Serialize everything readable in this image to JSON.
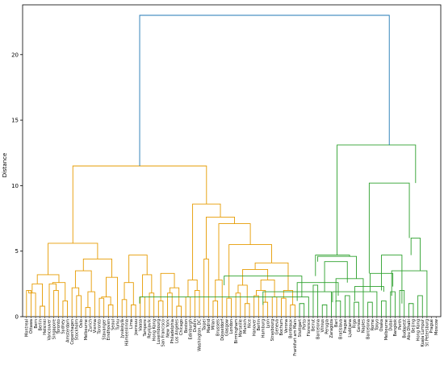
{
  "chart_data": {
    "type": "dendrogram",
    "ylabel": "Distance",
    "ylim": [
      0,
      23.8
    ],
    "y_ticks": [
      0,
      5,
      10,
      15,
      20
    ],
    "colors": {
      "orange": "#e69b00",
      "green": "#2ca02c",
      "root": "#1f77b4"
    },
    "leaves": [
      "Montreal",
      "Ottawa",
      "Bern",
      "Berlin",
      "Helsinki",
      "Vancouver",
      "Singapore",
      "Toronto",
      "Sydney",
      "Amsterdam",
      "Copenhagen",
      "Stockholm",
      "Oslo",
      "Melbourne",
      "Zurich",
      "Vienna",
      "Toronto",
      "Stavanger",
      "Eindhoven",
      "Seoul",
      "Turku",
      "Jyväskylä",
      "Hämeenlinna",
      "Lima",
      "Joensuu",
      "Vaasa",
      "Tampere",
      "Reykjavik",
      "Hong Kong",
      "Luxembourg",
      "San Francisco",
      "New York",
      "Philadelphia",
      "Los Angeles",
      "Chicago",
      "Boston",
      "Edinburgh",
      "Dublin",
      "Washington, DC",
      "Taipei",
      "Madrid",
      "Milan",
      "Brussels",
      "Düsseldorf",
      "Glasgow",
      "London",
      "Birmingham",
      "Marseille",
      "Munich",
      "Nice",
      "Hanover",
      "Berlin",
      "Hamburg",
      "Lyon",
      "Strasbourg",
      "Geneva",
      "Bochum",
      "Verona",
      "Bordeaux",
      "Frankfurt am Main",
      "Stuttgart",
      "Porto",
      "Florence",
      "Beirut",
      "Barcelona",
      "Vilnius",
      "Perugia",
      "Zaragoza",
      "Bari",
      "Bratislava",
      "Prague",
      "Ljubljana",
      "Riga",
      "Genoa",
      "Naples",
      "Barcelona",
      "Rome",
      "Tokyo",
      "Osaka",
      "Melbourne",
      "Dubai",
      "Bangkok",
      "Perth",
      "Budapest",
      "Abu Dhabi",
      "Beijing",
      "Hong Kong",
      "Kuala Lumpur",
      "St Petersburg",
      "Prague",
      "Moscow"
    ],
    "links": [
      {
        "color": "orange",
        "height": 2.0,
        "left": {
          "leaf": 0
        },
        "right": {
          "leaf": 1
        }
      },
      {
        "color": "orange",
        "height": 1.8,
        "left": {
          "node": 0,
          "h": 2.0
        },
        "right": {
          "leaf": 2
        }
      },
      {
        "color": "orange",
        "height": 0.8,
        "left": {
          "leaf": 3
        },
        "right": {
          "leaf": 4
        }
      },
      {
        "color": "orange",
        "height": 2.5,
        "left": {
          "node": 1,
          "h": 1.8
        },
        "right": {
          "node": 2,
          "h": 0.8
        }
      },
      {
        "color": "orange",
        "height": 2.0,
        "left": {
          "leaf": 6
        },
        "right": {
          "leaf": 7
        }
      },
      {
        "color": "orange",
        "height": 2.5,
        "left": {
          "leaf": 5
        },
        "right": {
          "node": 4,
          "h": 2.0
        }
      },
      {
        "color": "orange",
        "height": 1.2,
        "left": {
          "leaf": 8
        },
        "right": {
          "leaf": 9
        }
      },
      {
        "color": "orange",
        "height": 2.6,
        "left": {
          "node": 5,
          "h": 2.5
        },
        "right": {
          "node": 6,
          "h": 1.2
        }
      },
      {
        "color": "orange",
        "height": 3.2,
        "left": {
          "node": 3,
          "h": 2.5
        },
        "right": {
          "node": 7,
          "h": 2.6
        }
      },
      {
        "color": "orange",
        "height": 1.6,
        "left": {
          "leaf": 11
        },
        "right": {
          "leaf": 12
        }
      },
      {
        "color": "orange",
        "height": 2.2,
        "left": {
          "leaf": 10
        },
        "right": {
          "node": 9,
          "h": 1.6
        }
      },
      {
        "color": "orange",
        "height": 0.7,
        "left": {
          "leaf": 13
        },
        "right": {
          "leaf": 14
        }
      },
      {
        "color": "orange",
        "height": 1.9,
        "left": {
          "node": 11,
          "h": 0.7
        },
        "right": {
          "leaf": 15
        }
      },
      {
        "color": "orange",
        "height": 3.5,
        "left": {
          "node": 10,
          "h": 2.2
        },
        "right": {
          "node": 12,
          "h": 1.9
        }
      },
      {
        "color": "orange",
        "height": 1.4,
        "left": {
          "leaf": 16
        },
        "right": {
          "leaf": 17
        }
      },
      {
        "color": "orange",
        "height": 0.9,
        "left": {
          "leaf": 18
        },
        "right": {
          "leaf": 19
        }
      },
      {
        "color": "orange",
        "height": 1.5,
        "left": {
          "node": 14,
          "h": 1.4
        },
        "right": {
          "node": 15,
          "h": 0.9
        }
      },
      {
        "color": "orange",
        "height": 3.0,
        "left": {
          "leaf": 20
        },
        "right": {
          "node": 16,
          "h": 1.5
        }
      },
      {
        "color": "orange",
        "height": 4.4,
        "left": {
          "node": 13,
          "h": 3.5
        },
        "right": {
          "node": 17,
          "h": 3.0
        }
      },
      {
        "color": "orange",
        "height": 5.6,
        "left": {
          "node": 8,
          "h": 3.2
        },
        "right": {
          "node": 18,
          "h": 4.4
        }
      },
      {
        "color": "orange",
        "height": 1.3,
        "left": {
          "leaf": 21
        },
        "right": {
          "leaf": 22
        }
      },
      {
        "color": "orange",
        "height": 0.9,
        "left": {
          "leaf": 23
        },
        "right": {
          "leaf": 24
        }
      },
      {
        "color": "orange",
        "height": 2.6,
        "left": {
          "node": 20,
          "h": 1.3
        },
        "right": {
          "node": 21,
          "h": 0.9
        }
      },
      {
        "color": "orange",
        "height": 1.5,
        "left": {
          "leaf": 25
        },
        "right": {
          "leaf": 26
        }
      },
      {
        "color": "orange",
        "height": 1.8,
        "left": {
          "leaf": 27
        },
        "right": {
          "leaf": 28
        }
      },
      {
        "color": "orange",
        "height": 3.2,
        "left": {
          "node": 23,
          "h": 1.5
        },
        "right": {
          "node": 24,
          "h": 1.8
        }
      },
      {
        "color": "orange",
        "height": 4.7,
        "left": {
          "node": 22,
          "h": 2.6
        },
        "right": {
          "node": 25,
          "h": 3.2
        }
      },
      {
        "color": "orange",
        "height": 1.2,
        "left": {
          "leaf": 29
        },
        "right": {
          "leaf": 30
        }
      },
      {
        "color": "orange",
        "height": 1.8,
        "left": {
          "leaf": 31
        },
        "right": {
          "leaf": 32
        }
      },
      {
        "color": "orange",
        "height": 0.8,
        "left": {
          "leaf": 33
        },
        "right": {
          "leaf": 34
        }
      },
      {
        "color": "orange",
        "height": 2.2,
        "left": {
          "node": 28,
          "h": 1.8
        },
        "right": {
          "node": 29,
          "h": 0.8
        }
      },
      {
        "color": "orange",
        "height": 3.3,
        "left": {
          "node": 27,
          "h": 1.2
        },
        "right": {
          "node": 30,
          "h": 2.2
        }
      },
      {
        "color": "orange",
        "height": 1.5,
        "left": {
          "leaf": 35
        },
        "right": {
          "leaf": 36
        }
      },
      {
        "color": "orange",
        "height": 2.0,
        "left": {
          "leaf": 37
        },
        "right": {
          "leaf": 38
        }
      },
      {
        "color": "orange",
        "height": 2.8,
        "left": {
          "node": 32,
          "h": 1.5
        },
        "right": {
          "node": 33,
          "h": 2.0
        }
      },
      {
        "color": "orange",
        "height": 4.4,
        "left": {
          "leaf": 39
        },
        "right": {
          "leaf": 40
        }
      },
      {
        "color": "orange",
        "height": 1.2,
        "left": {
          "leaf": 41
        },
        "right": {
          "leaf": 42
        }
      },
      {
        "color": "orange",
        "height": 2.8,
        "left": {
          "node": 36,
          "h": 1.2
        },
        "right": {
          "leaf": 43
        }
      },
      {
        "color": "orange",
        "height": 1.4,
        "left": {
          "leaf": 44
        },
        "right": {
          "leaf": 45
        }
      },
      {
        "color": "orange",
        "height": 1.8,
        "left": {
          "leaf": 46
        },
        "right": {
          "leaf": 47
        }
      },
      {
        "color": "orange",
        "height": 1.0,
        "left": {
          "leaf": 48
        },
        "right": {
          "leaf": 49
        }
      },
      {
        "color": "orange",
        "height": 2.4,
        "left": {
          "node": 39,
          "h": 1.8
        },
        "right": {
          "node": 40,
          "h": 1.0
        }
      },
      {
        "color": "orange",
        "height": 1.6,
        "left": {
          "leaf": 50
        },
        "right": {
          "leaf": 51
        }
      },
      {
        "color": "orange",
        "height": 1.1,
        "left": {
          "leaf": 52
        },
        "right": {
          "leaf": 53
        }
      },
      {
        "color": "orange",
        "height": 2.0,
        "left": {
          "node": 42,
          "h": 1.6
        },
        "right": {
          "node": 43,
          "h": 1.1
        }
      },
      {
        "color": "orange",
        "height": 1.5,
        "left": {
          "leaf": 54
        },
        "right": {
          "leaf": 55
        }
      },
      {
        "color": "orange",
        "height": 2.8,
        "left": {
          "node": 44,
          "h": 2.0
        },
        "right": {
          "node": 45,
          "h": 1.5
        }
      },
      {
        "color": "orange",
        "height": 3.6,
        "left": {
          "node": 41,
          "h": 2.4
        },
        "right": {
          "node": 46,
          "h": 2.8
        }
      },
      {
        "color": "orange",
        "height": 1.4,
        "left": {
          "leaf": 56
        },
        "right": {
          "leaf": 57
        }
      },
      {
        "color": "orange",
        "height": 0.9,
        "left": {
          "leaf": 58
        },
        "right": {
          "leaf": 59
        }
      },
      {
        "color": "orange",
        "height": 2.0,
        "left": {
          "node": 48,
          "h": 1.4
        },
        "right": {
          "node": 49,
          "h": 0.9
        }
      },
      {
        "color": "orange",
        "height": 4.1,
        "left": {
          "node": 47,
          "h": 3.6
        },
        "right": {
          "node": 50,
          "h": 2.0
        }
      },
      {
        "color": "orange",
        "height": 5.5,
        "left": {
          "node": 38,
          "h": 1.4
        },
        "right": {
          "node": 51,
          "h": 4.1
        }
      },
      {
        "color": "orange",
        "height": 7.1,
        "left": {
          "node": 37,
          "h": 2.8
        },
        "right": {
          "node": 52,
          "h": 5.5
        }
      },
      {
        "color": "orange",
        "height": 7.6,
        "left": {
          "node": 35,
          "h": 4.4
        },
        "right": {
          "node": 53,
          "h": 7.1
        }
      },
      {
        "color": "orange",
        "height": 8.6,
        "left": {
          "node": 34,
          "h": 2.8
        },
        "right": {
          "node": 54,
          "h": 7.6
        }
      },
      {
        "color": "orange",
        "height": 11.5,
        "left": {
          "node": 19,
          "h": 5.6
        },
        "right": {
          "node": 55,
          "h": 8.6
        }
      },
      {
        "color": "green",
        "height": 1.0,
        "left": {
          "leaf": 60
        },
        "right": {
          "leaf": 61
        }
      },
      {
        "color": "green",
        "height": 1.5,
        "left": {
          "node": 56,
          "h": 1.0
        },
        "right": {
          "leaf": 62
        }
      },
      {
        "color": "green",
        "height": 2.4,
        "left": {
          "leaf": 63
        },
        "right": {
          "leaf": 64
        }
      },
      {
        "color": "green",
        "height": 3.1,
        "left": {
          "node": 57,
          "h": 1.5
        },
        "right": {
          "node": 58,
          "h": 2.4
        }
      },
      {
        "color": "green",
        "height": 0.9,
        "left": {
          "leaf": 65
        },
        "right": {
          "leaf": 66
        }
      },
      {
        "color": "green",
        "height": 1.9,
        "left": {
          "leaf": 67
        },
        "right": {
          "node": 60,
          "h": 0.9
        }
      },
      {
        "color": "green",
        "height": 1.2,
        "left": {
          "leaf": 68
        },
        "right": {
          "leaf": 69
        }
      },
      {
        "color": "green",
        "height": 1.6,
        "left": {
          "leaf": 70
        },
        "right": {
          "leaf": 71
        }
      },
      {
        "color": "green",
        "height": 2.6,
        "left": {
          "node": 62,
          "h": 1.2
        },
        "right": {
          "node": 63,
          "h": 1.6
        }
      },
      {
        "color": "green",
        "height": 4.2,
        "left": {
          "node": 61,
          "h": 1.9
        },
        "right": {
          "node": 64,
          "h": 2.6
        }
      },
      {
        "color": "green",
        "height": 1.1,
        "left": {
          "leaf": 72
        },
        "right": {
          "leaf": 73
        }
      },
      {
        "color": "green",
        "height": 2.9,
        "left": {
          "node": 66,
          "h": 1.1
        },
        "right": {
          "leaf": 74
        }
      },
      {
        "color": "green",
        "height": 4.6,
        "left": {
          "node": 65,
          "h": 4.2
        },
        "right": {
          "node": 67,
          "h": 2.9
        }
      },
      {
        "color": "green",
        "height": 4.7,
        "left": {
          "node": 59,
          "h": 3.1
        },
        "right": {
          "node": 68,
          "h": 4.6
        }
      },
      {
        "color": "green",
        "height": 1.1,
        "left": {
          "leaf": 75
        },
        "right": {
          "leaf": 76
        }
      },
      {
        "color": "green",
        "height": 1.9,
        "left": {
          "node": 70,
          "h": 1.1
        },
        "right": {
          "leaf": 77
        }
      },
      {
        "color": "green",
        "height": 1.2,
        "left": {
          "leaf": 78
        },
        "right": {
          "leaf": 79
        }
      },
      {
        "color": "green",
        "height": 1.9,
        "left": {
          "leaf": 80
        },
        "right": {
          "leaf": 81
        }
      },
      {
        "color": "green",
        "height": 2.3,
        "left": {
          "node": 72,
          "h": 1.2
        },
        "right": {
          "node": 73,
          "h": 1.9
        }
      },
      {
        "color": "green",
        "height": 3.3,
        "left": {
          "node": 71,
          "h": 1.9
        },
        "right": {
          "node": 74,
          "h": 2.3
        }
      },
      {
        "color": "green",
        "height": 2.0,
        "left": {
          "leaf": 82
        },
        "right": {
          "leaf": 83
        }
      },
      {
        "color": "green",
        "height": 1.0,
        "left": {
          "leaf": 84
        },
        "right": {
          "leaf": 85
        }
      },
      {
        "color": "green",
        "height": 4.7,
        "left": {
          "node": 76,
          "h": 2.0
        },
        "right": {
          "node": 77,
          "h": 1.0
        }
      },
      {
        "color": "green",
        "height": 1.6,
        "left": {
          "leaf": 86
        },
        "right": {
          "leaf": 87
        }
      },
      {
        "color": "green",
        "height": 3.5,
        "left": {
          "leaf": 88
        },
        "right": {
          "node": 79,
          "h": 1.6
        }
      },
      {
        "color": "green",
        "height": 6.0,
        "left": {
          "node": 78,
          "h": 4.7
        },
        "right": {
          "node": 80,
          "h": 3.5
        }
      },
      {
        "color": "green",
        "height": 10.2,
        "left": {
          "node": 75,
          "h": 3.3
        },
        "right": {
          "node": 81,
          "h": 6.0
        }
      },
      {
        "color": "green",
        "height": 13.1,
        "left": {
          "node": 69,
          "h": 4.7
        },
        "right": {
          "node": 82,
          "h": 10.2
        }
      },
      {
        "color": "root",
        "height": 23.0,
        "left": {
          "node": 56,
          "h": 11.5
        },
        "right": {
          "node": 83,
          "h": 13.1
        }
      }
    ]
  }
}
